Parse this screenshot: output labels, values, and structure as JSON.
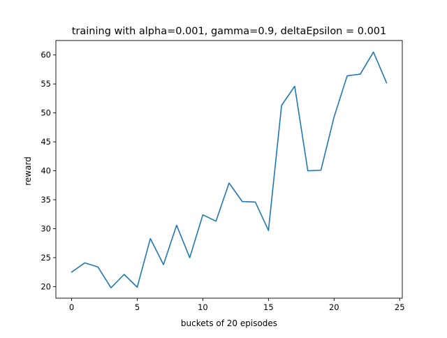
{
  "chart_data": {
    "type": "line",
    "title": "training with alpha=0.001, gamma=0.9, deltaEpsilon = 0.001",
    "xlabel": "buckets of 20 episodes",
    "ylabel": "reward",
    "xlim": [
      -1.2,
      25.2
    ],
    "ylim": [
      18,
      62.5
    ],
    "xticks": [
      0,
      5,
      10,
      15,
      20,
      25
    ],
    "yticks": [
      20,
      25,
      30,
      35,
      40,
      45,
      50,
      55,
      60
    ],
    "grid": false,
    "line_color": "#1f77b4",
    "series": [
      {
        "x": [
          0,
          1,
          2,
          3,
          4,
          5,
          6,
          7,
          8,
          9,
          10,
          11,
          12,
          13,
          14,
          15,
          16,
          17,
          18,
          19,
          20,
          21,
          22,
          23,
          24
        ],
        "values": [
          22.5,
          24.1,
          23.4,
          19.8,
          22.1,
          19.9,
          28.3,
          23.8,
          30.6,
          25.0,
          32.4,
          31.3,
          37.9,
          34.7,
          34.6,
          29.7,
          51.3,
          54.6,
          40.0,
          40.1,
          49.3,
          56.4,
          56.7,
          60.5,
          55.2
        ]
      }
    ]
  }
}
